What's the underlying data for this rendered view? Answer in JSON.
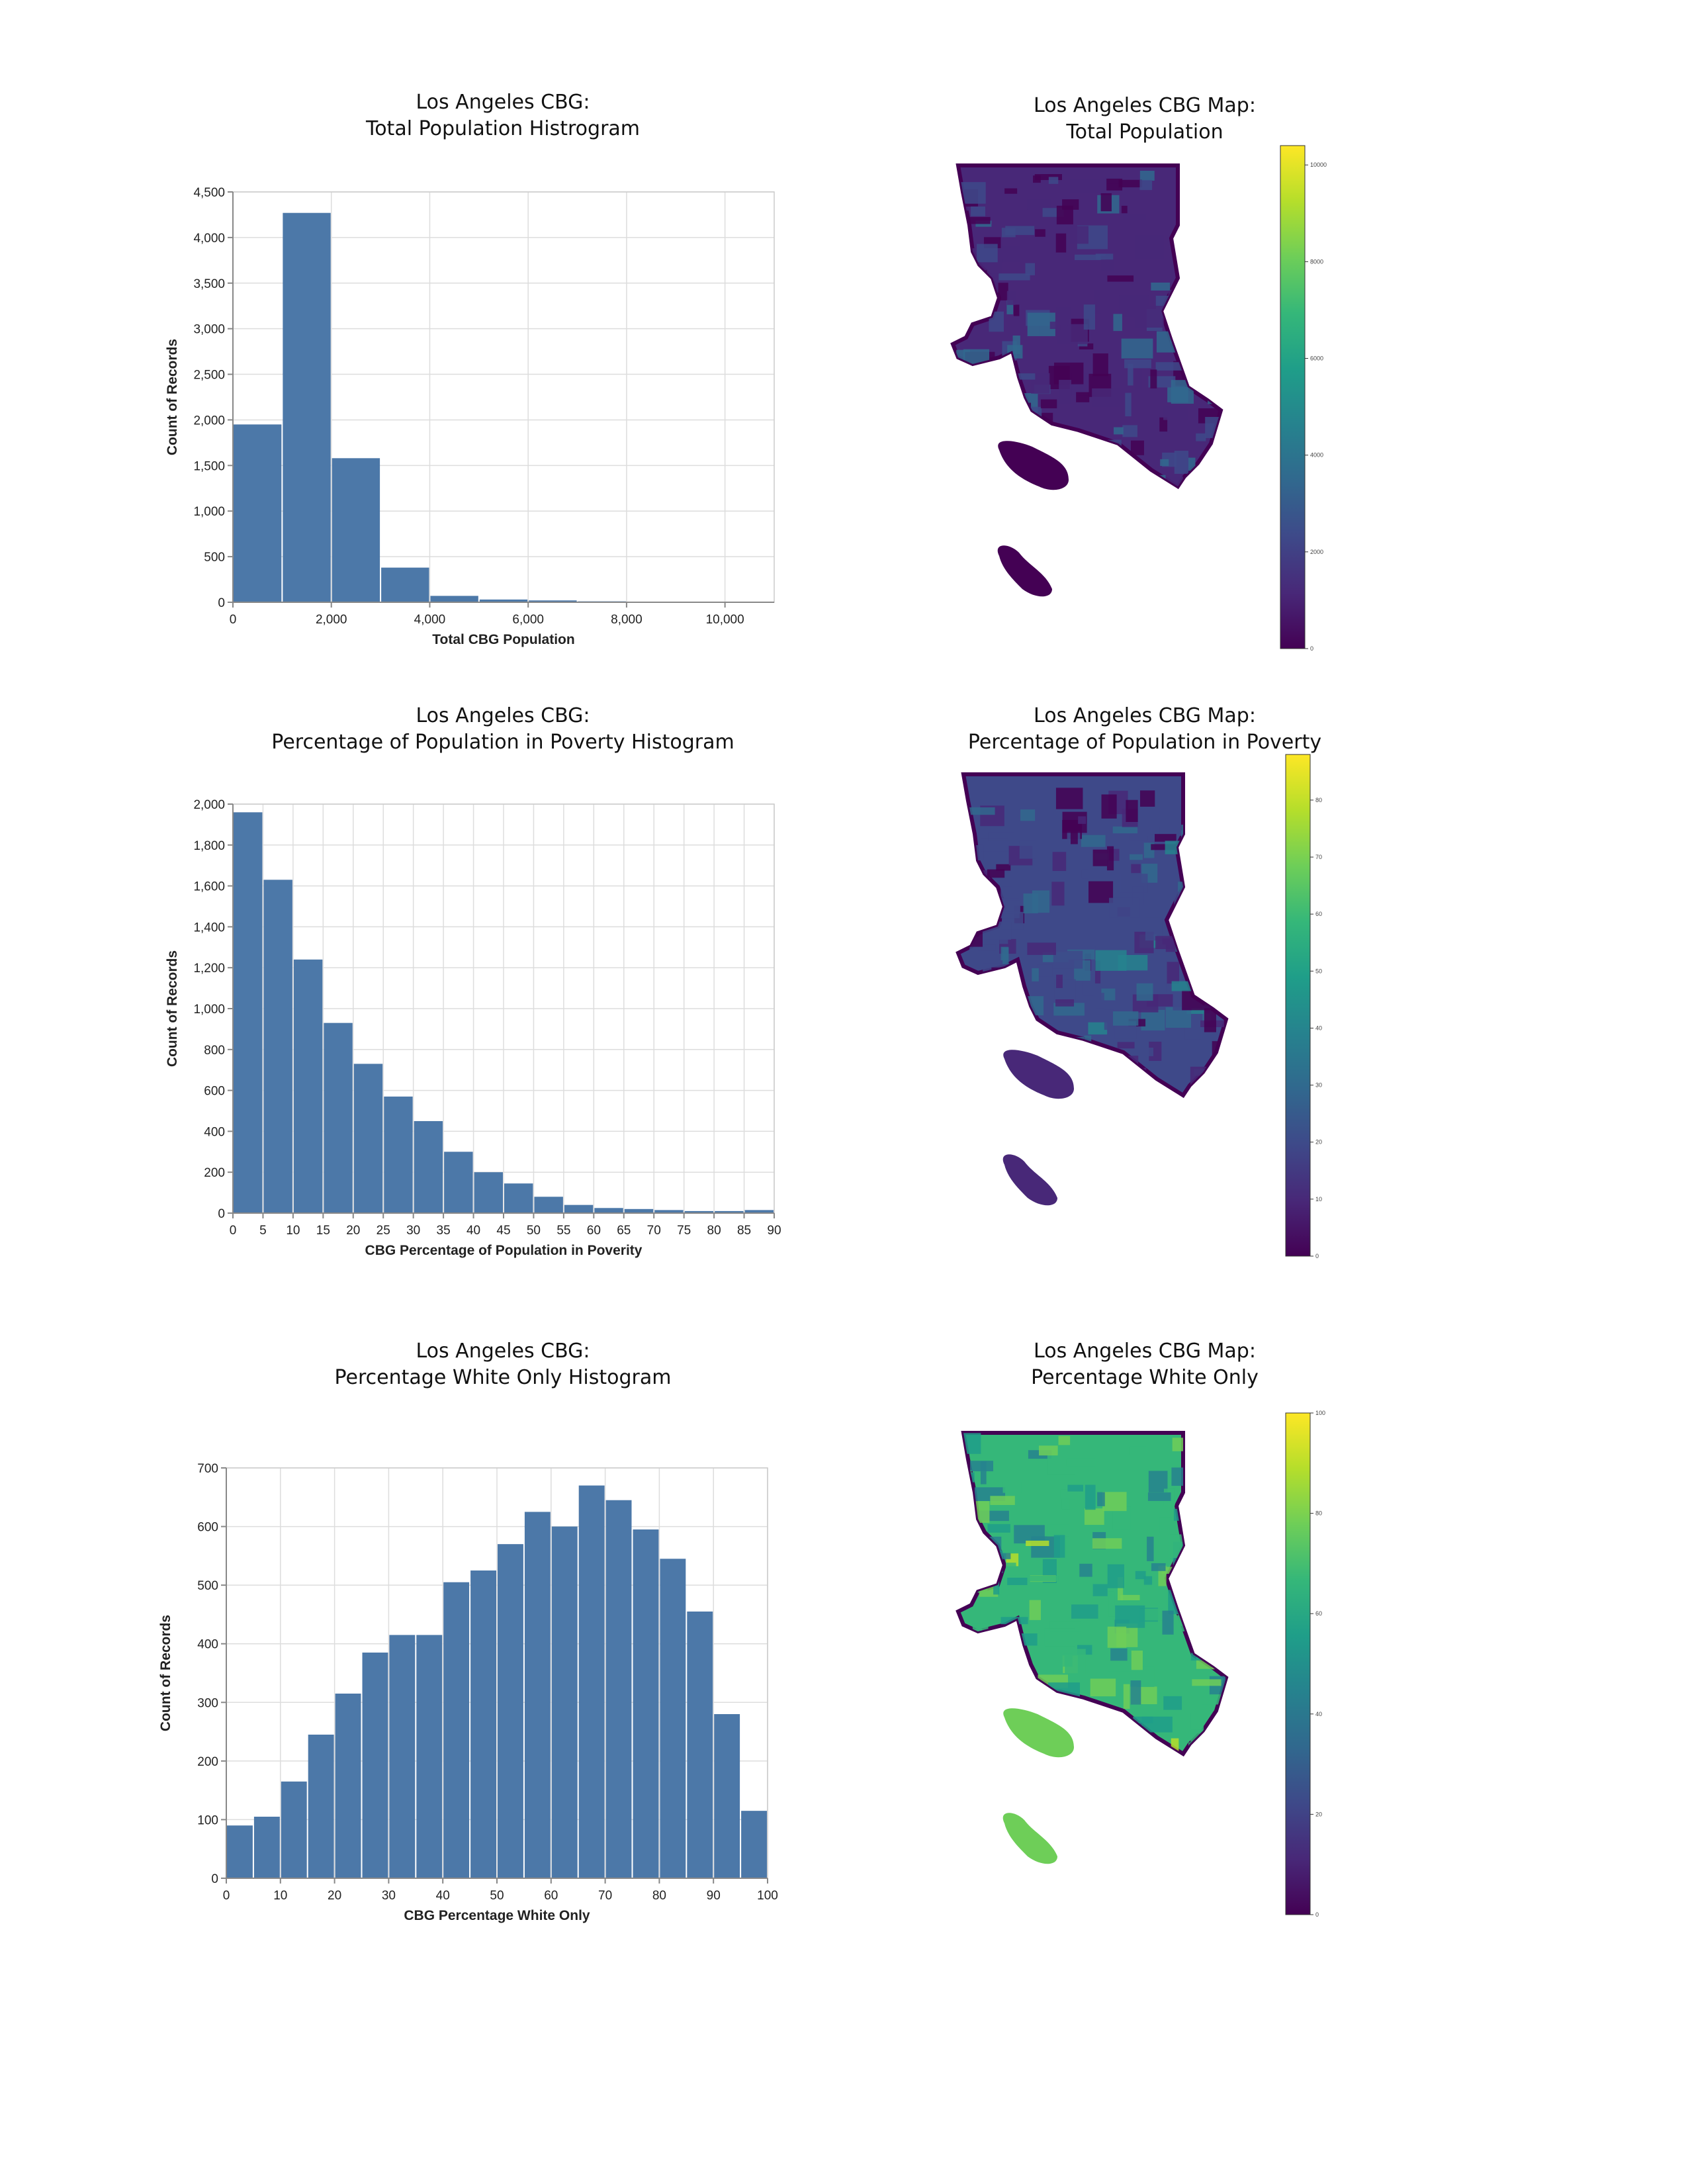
{
  "colors": {
    "bar": "#4c78a8",
    "grid": "#dddddd",
    "viridis": [
      "#440154",
      "#482878",
      "#3e4989",
      "#31688e",
      "#26828e",
      "#1f9e89",
      "#35b779",
      "#6ece58",
      "#b5de2b",
      "#fde725"
    ]
  },
  "charts": [
    {
      "title_line1": "Los Angeles CBG:",
      "title_line2": "Total Population Histrogram",
      "xlabel": "Total CBG Population",
      "ylabel": "Count of Records"
    },
    {
      "title_line1": "Los Angeles CBG:",
      "title_line2": "Percentage of Population in Poverty Histogram",
      "xlabel": "CBG Percentage of Population in Poverity",
      "ylabel": "Count of Records"
    },
    {
      "title_line1": "Los Angeles CBG:",
      "title_line2": "Percentage White Only Histogram",
      "xlabel": "CBG Percentage White Only",
      "ylabel": "Count of Records"
    }
  ],
  "maps": [
    {
      "title_line1": "Los Angeles CBG Map:",
      "title_line2": "Total Population",
      "colorbar_ticks": [
        {
          "value": 0,
          "label": "0"
        },
        {
          "value": 2000,
          "label": "2000"
        },
        {
          "value": 4000,
          "label": "4000"
        },
        {
          "value": 6000,
          "label": "6000"
        },
        {
          "value": 8000,
          "label": "8000"
        },
        {
          "value": 10000,
          "label": "10000"
        }
      ],
      "range": [
        0,
        10400
      ],
      "mainland_level": 0.15,
      "island_level": 0.05
    },
    {
      "title_line1": "Los Angeles CBG Map:",
      "title_line2": "Percentage of Population in Poverty",
      "colorbar_ticks": [
        {
          "value": 0,
          "label": "0"
        },
        {
          "value": 10,
          "label": "10"
        },
        {
          "value": 20,
          "label": "20"
        },
        {
          "value": 30,
          "label": "30"
        },
        {
          "value": 40,
          "label": "40"
        },
        {
          "value": 50,
          "label": "50"
        },
        {
          "value": 60,
          "label": "60"
        },
        {
          "value": 70,
          "label": "70"
        },
        {
          "value": 80,
          "label": "80"
        }
      ],
      "range": [
        0,
        88
      ],
      "mainland_level": 0.18,
      "island_level": 0.12
    },
    {
      "title_line1": "Los Angeles CBG Map:",
      "title_line2": "Percentage White Only",
      "colorbar_ticks": [
        {
          "value": 0,
          "label": "0"
        },
        {
          "value": 20,
          "label": "20"
        },
        {
          "value": 40,
          "label": "40"
        },
        {
          "value": 60,
          "label": "60"
        },
        {
          "value": 80,
          "label": "80"
        },
        {
          "value": 100,
          "label": "100"
        }
      ],
      "range": [
        0,
        100
      ],
      "mainland_level": 0.62,
      "island_level": 0.82
    }
  ],
  "chart_data": [
    {
      "type": "bar",
      "title": "Los Angeles CBG: Total Population Histrogram",
      "xlabel": "Total CBG Population",
      "ylabel": "Count of Records",
      "bin_edges": [
        0,
        1000,
        2000,
        3000,
        4000,
        5000,
        6000,
        7000,
        8000,
        9000,
        10000,
        11000
      ],
      "values": [
        1950,
        4270,
        1580,
        380,
        70,
        30,
        20,
        10,
        5,
        5,
        5
      ],
      "xlim": [
        0,
        11000
      ],
      "ylim": [
        0,
        4500
      ],
      "xticks": [
        {
          "value": 0,
          "label": "0"
        },
        {
          "value": 2000,
          "label": "2,000"
        },
        {
          "value": 4000,
          "label": "4,000"
        },
        {
          "value": 6000,
          "label": "6,000"
        },
        {
          "value": 8000,
          "label": "8,000"
        },
        {
          "value": 10000,
          "label": "10,000"
        }
      ],
      "yticks": [
        {
          "value": 0,
          "label": "0"
        },
        {
          "value": 500,
          "label": "500"
        },
        {
          "value": 1000,
          "label": "1,000"
        },
        {
          "value": 1500,
          "label": "1,500"
        },
        {
          "value": 2000,
          "label": "2,000"
        },
        {
          "value": 2500,
          "label": "2,500"
        },
        {
          "value": 3000,
          "label": "3,000"
        },
        {
          "value": 3500,
          "label": "3,500"
        },
        {
          "value": 4000,
          "label": "4,000"
        },
        {
          "value": 4500,
          "label": "4,500"
        }
      ],
      "grid": true
    },
    {
      "type": "bar",
      "title": "Los Angeles CBG: Percentage of Population in Poverty Histogram",
      "xlabel": "CBG Percentage of Population in Poverity",
      "ylabel": "Count of Records",
      "bin_edges": [
        0,
        5,
        10,
        15,
        20,
        25,
        30,
        35,
        40,
        45,
        50,
        55,
        60,
        65,
        70,
        75,
        80,
        85,
        90
      ],
      "values": [
        1960,
        1630,
        1240,
        930,
        730,
        570,
        450,
        300,
        200,
        145,
        80,
        40,
        25,
        20,
        15,
        10,
        10,
        15
      ],
      "xlim": [
        0,
        90
      ],
      "ylim": [
        0,
        2000
      ],
      "xticks": [
        {
          "value": 0,
          "label": "0"
        },
        {
          "value": 5,
          "label": "5"
        },
        {
          "value": 10,
          "label": "10"
        },
        {
          "value": 15,
          "label": "15"
        },
        {
          "value": 20,
          "label": "20"
        },
        {
          "value": 25,
          "label": "25"
        },
        {
          "value": 30,
          "label": "30"
        },
        {
          "value": 35,
          "label": "35"
        },
        {
          "value": 40,
          "label": "40"
        },
        {
          "value": 45,
          "label": "45"
        },
        {
          "value": 50,
          "label": "50"
        },
        {
          "value": 55,
          "label": "55"
        },
        {
          "value": 60,
          "label": "60"
        },
        {
          "value": 65,
          "label": "65"
        },
        {
          "value": 70,
          "label": "70"
        },
        {
          "value": 75,
          "label": "75"
        },
        {
          "value": 80,
          "label": "80"
        },
        {
          "value": 85,
          "label": "85"
        },
        {
          "value": 90,
          "label": "90"
        }
      ],
      "yticks": [
        {
          "value": 0,
          "label": "0"
        },
        {
          "value": 200,
          "label": "200"
        },
        {
          "value": 400,
          "label": "400"
        },
        {
          "value": 600,
          "label": "600"
        },
        {
          "value": 800,
          "label": "800"
        },
        {
          "value": 1000,
          "label": "1,000"
        },
        {
          "value": 1200,
          "label": "1,200"
        },
        {
          "value": 1400,
          "label": "1,400"
        },
        {
          "value": 1600,
          "label": "1,600"
        },
        {
          "value": 1800,
          "label": "1,800"
        },
        {
          "value": 2000,
          "label": "2,000"
        }
      ],
      "grid": true
    },
    {
      "type": "bar",
      "title": "Los Angeles CBG: Percentage White Only Histogram",
      "xlabel": "CBG Percentage White Only",
      "ylabel": "Count of Records",
      "bin_edges": [
        0,
        5,
        10,
        15,
        20,
        25,
        30,
        35,
        40,
        45,
        50,
        55,
        60,
        65,
        70,
        75,
        80,
        85,
        90,
        95,
        100
      ],
      "values": [
        90,
        105,
        165,
        245,
        315,
        385,
        415,
        415,
        505,
        525,
        570,
        625,
        600,
        670,
        645,
        595,
        545,
        455,
        280,
        115
      ],
      "xlim": [
        0,
        100
      ],
      "ylim": [
        0,
        700
      ],
      "xticks": [
        {
          "value": 0,
          "label": "0"
        },
        {
          "value": 10,
          "label": "10"
        },
        {
          "value": 20,
          "label": "20"
        },
        {
          "value": 30,
          "label": "30"
        },
        {
          "value": 40,
          "label": "40"
        },
        {
          "value": 50,
          "label": "50"
        },
        {
          "value": 60,
          "label": "60"
        },
        {
          "value": 70,
          "label": "70"
        },
        {
          "value": 80,
          "label": "80"
        },
        {
          "value": 90,
          "label": "90"
        },
        {
          "value": 100,
          "label": "100"
        }
      ],
      "yticks": [
        {
          "value": 0,
          "label": "0"
        },
        {
          "value": 100,
          "label": "100"
        },
        {
          "value": 200,
          "label": "200"
        },
        {
          "value": 300,
          "label": "300"
        },
        {
          "value": 400,
          "label": "400"
        },
        {
          "value": 500,
          "label": "500"
        },
        {
          "value": 600,
          "label": "600"
        },
        {
          "value": 700,
          "label": "700"
        }
      ],
      "grid": true
    }
  ]
}
